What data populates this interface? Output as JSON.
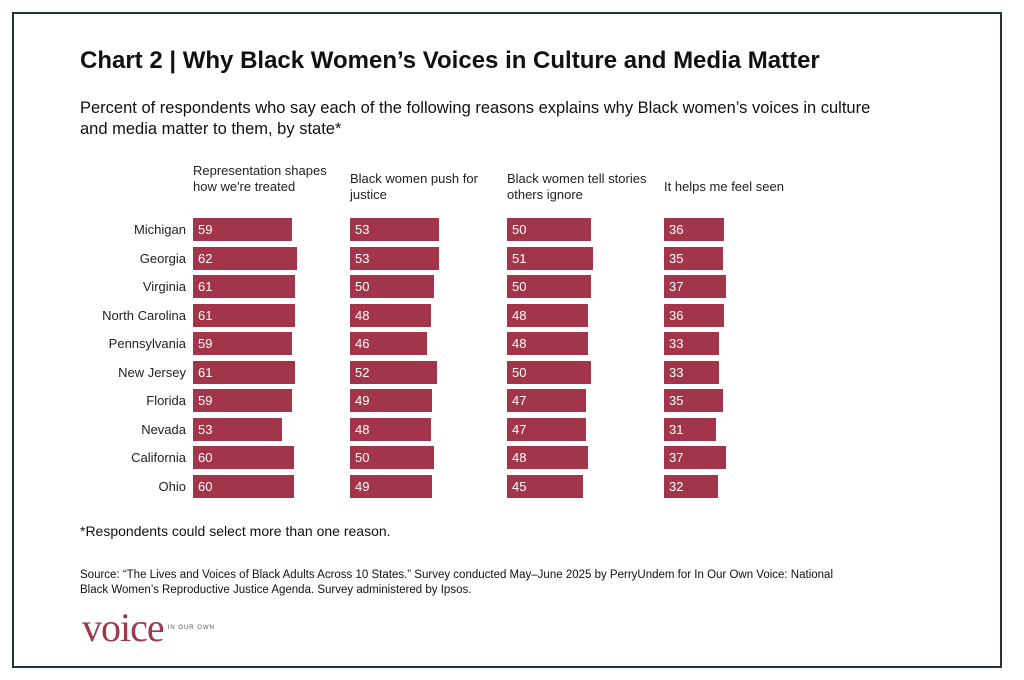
{
  "title": "Chart 2  |  Why Black Women’s Voices in Culture and Media Matter",
  "subtitle": "Percent of respondents who say each of the following reasons explains why Black women’s voices in culture and media matter to them, by state*",
  "footnote": "*Respondents could select more than one reason.",
  "source": "Source: “The Lives and Voices of Black Adults Across 10 States.” Survey conducted May–June 2025 by PerryUndem for In Our Own Voice: National Black Women’s Reproductive Justice Agenda. Survey administered by Ipsos.",
  "logo": {
    "text": "voice",
    "small_text": "IN OUR OWN"
  },
  "colors": {
    "bar": "#a3354b",
    "border": "#24323f"
  },
  "chart_data": {
    "type": "bar",
    "orientation": "horizontal",
    "layout": "small-multiples",
    "title": "Chart 2  |  Why Black Women’s Voices in Culture and Media Matter",
    "categories": [
      "Michigan",
      "Georgia",
      "Virginia",
      "North Carolina",
      "Pennsylvania",
      "New Jersey",
      "Florida",
      "Nevada",
      "California",
      "Ohio"
    ],
    "series": [
      {
        "name": "Representation shapes how we're treated",
        "values": [
          59,
          62,
          61,
          61,
          59,
          61,
          59,
          53,
          60,
          60
        ]
      },
      {
        "name": "Black women push for justice",
        "values": [
          53,
          53,
          50,
          48,
          46,
          52,
          49,
          48,
          50,
          49
        ]
      },
      {
        "name": "Black women tell stories others ignore",
        "values": [
          50,
          51,
          50,
          48,
          48,
          50,
          47,
          47,
          48,
          45
        ]
      },
      {
        "name": "It helps me feel seen",
        "values": [
          36,
          35,
          37,
          36,
          33,
          33,
          35,
          31,
          37,
          32
        ]
      }
    ],
    "data_labels": true,
    "grid": false
  }
}
